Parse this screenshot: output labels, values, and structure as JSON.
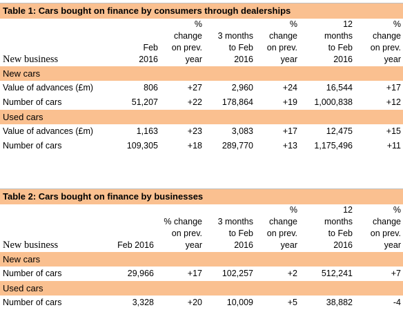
{
  "table1": {
    "title": "Table 1: Cars bought on finance by consumers through dealerships",
    "header": {
      "label": "New business",
      "cols": [
        [
          "Feb",
          "2016"
        ],
        [
          "%",
          "change",
          "on prev.",
          "year"
        ],
        [
          "3 months",
          "to Feb",
          "2016"
        ],
        [
          "%",
          "change",
          "on prev.",
          "year"
        ],
        [
          "12",
          "months",
          "to Feb",
          "2016"
        ],
        [
          "%",
          "change",
          "on prev.",
          "year"
        ]
      ]
    },
    "sections": [
      {
        "name": "New cars",
        "rows": [
          {
            "label": "Value of advances (£m)",
            "values": [
              "806",
              "+27",
              "2,960",
              "+24",
              "16,544",
              "+17"
            ]
          },
          {
            "label": "Number of cars",
            "values": [
              "51,207",
              "+22",
              "178,864",
              "+19",
              "1,000,838",
              "+12"
            ]
          }
        ]
      },
      {
        "name": "Used cars",
        "rows": [
          {
            "label": "Value of advances (£m)",
            "values": [
              "1,163",
              "+23",
              "3,083",
              "+17",
              "12,475",
              "+15"
            ]
          },
          {
            "label": "Number of cars",
            "values": [
              "109,305",
              "+18",
              "289,770",
              "+13",
              "1,175,496",
              "+11"
            ]
          }
        ]
      }
    ]
  },
  "table2": {
    "title": "Table 2: Cars bought on finance by businesses",
    "header": {
      "label": "New business",
      "cols": [
        [
          "Feb 2016"
        ],
        [
          "% change",
          "on prev.",
          "year"
        ],
        [
          "3 months",
          "to Feb",
          "2016"
        ],
        [
          "%",
          "change",
          "on prev.",
          "year"
        ],
        [
          "12",
          "months",
          "to Feb",
          "2016"
        ],
        [
          "%",
          "change",
          "on prev.",
          "year"
        ]
      ]
    },
    "sections": [
      {
        "name": "New cars",
        "rows": [
          {
            "label": "Number of cars",
            "values": [
              "29,966",
              "+17",
              "102,257",
              "+2",
              "512,241",
              "+7"
            ]
          }
        ]
      },
      {
        "name": "Used cars",
        "rows": [
          {
            "label": "Number of cars",
            "values": [
              "3,328",
              "+20",
              "10,009",
              "+5",
              "38,882",
              "-4"
            ]
          }
        ]
      }
    ]
  }
}
